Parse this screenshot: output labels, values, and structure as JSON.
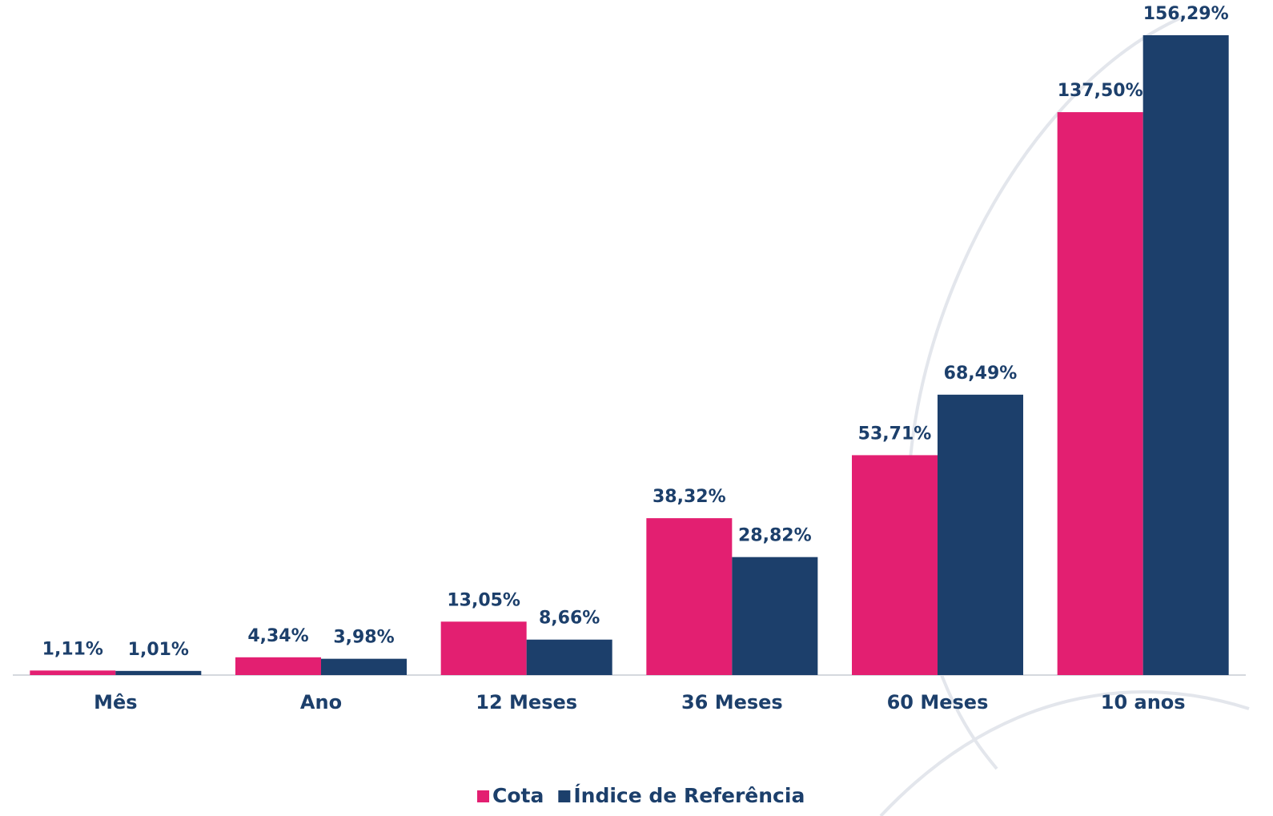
{
  "chart_data": {
    "type": "bar",
    "categories": [
      "Mês",
      "Ano",
      "12 Meses",
      "36 Meses",
      "60 Meses",
      "10 anos"
    ],
    "series": [
      {
        "name": "Cota",
        "color": "#e31f71",
        "values": [
          1.11,
          4.34,
          13.05,
          38.32,
          53.71,
          137.5
        ],
        "value_labels": [
          "1,11%",
          "4,34%",
          "13,05%",
          "38,32%",
          "53,71%",
          "137,50%"
        ]
      },
      {
        "name": "Índice de Referência",
        "color": "#1c3f6b",
        "values": [
          1.01,
          3.98,
          8.66,
          28.82,
          68.49,
          156.29
        ],
        "value_labels": [
          "1,01%",
          "3,98%",
          "8,66%",
          "28,82%",
          "68,49%",
          "156,29%"
        ]
      }
    ]
  }
}
